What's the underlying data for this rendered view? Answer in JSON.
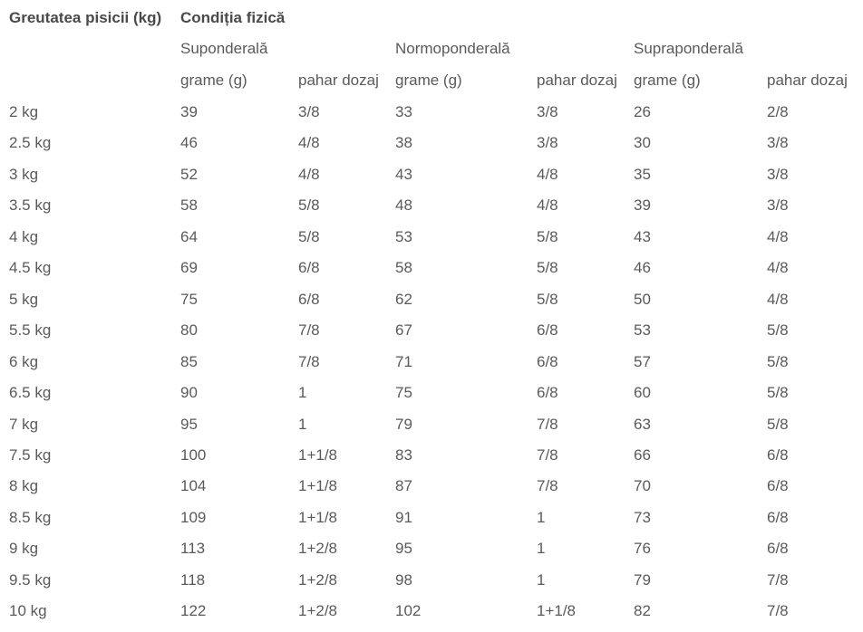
{
  "table": {
    "title": [
      "Greutatea pisicii (kg)",
      "Condiția fizică"
    ],
    "conditions": [
      "Suponderală",
      "Normoponderală",
      "Supraponderală"
    ],
    "subheaders": [
      "grame (g)",
      "pahar dozaj",
      "grame (g)",
      "pahar dozaj",
      "grame (g)",
      "pahar dozaj"
    ],
    "rows": [
      [
        "2 kg",
        39,
        "3/8",
        33,
        "3/8",
        26,
        "2/8"
      ],
      [
        "2.5 kg",
        46,
        "4/8",
        38,
        "3/8",
        30,
        "3/8"
      ],
      [
        "3 kg",
        52,
        "4/8",
        43,
        "4/8",
        35,
        "3/8"
      ],
      [
        "3.5 kg",
        58,
        "5/8",
        48,
        "4/8",
        39,
        "3/8"
      ],
      [
        "4 kg",
        64,
        "5/8",
        53,
        "5/8",
        43,
        "4/8"
      ],
      [
        "4.5 kg",
        69,
        "6/8",
        58,
        "5/8",
        46,
        "4/8"
      ],
      [
        "5 kg",
        75,
        "6/8",
        62,
        "5/8",
        50,
        "4/8"
      ],
      [
        "5.5 kg",
        80,
        "7/8",
        67,
        "6/8",
        53,
        "5/8"
      ],
      [
        "6 kg",
        85,
        "7/8",
        71,
        "6/8",
        57,
        "5/8"
      ],
      [
        "6.5 kg",
        90,
        "1",
        75,
        "6/8",
        60,
        "5/8"
      ],
      [
        "7 kg",
        95,
        "1",
        79,
        "7/8",
        63,
        "5/8"
      ],
      [
        "7.5 kg",
        100,
        "1+1/8",
        83,
        "7/8",
        66,
        "6/8"
      ],
      [
        "8 kg",
        104,
        "1+1/8",
        87,
        "7/8",
        70,
        "6/8"
      ],
      [
        "8.5 kg",
        109,
        "1+1/8",
        91,
        "1",
        73,
        "6/8"
      ],
      [
        "9 kg",
        113,
        "1+2/8",
        95,
        "1",
        76,
        "6/8"
      ],
      [
        "9.5 kg",
        118,
        "1+2/8",
        98,
        "1",
        79,
        "7/8"
      ],
      [
        "10 kg",
        122,
        "1+2/8",
        102,
        "1+1/8",
        82,
        "7/8"
      ]
    ]
  }
}
